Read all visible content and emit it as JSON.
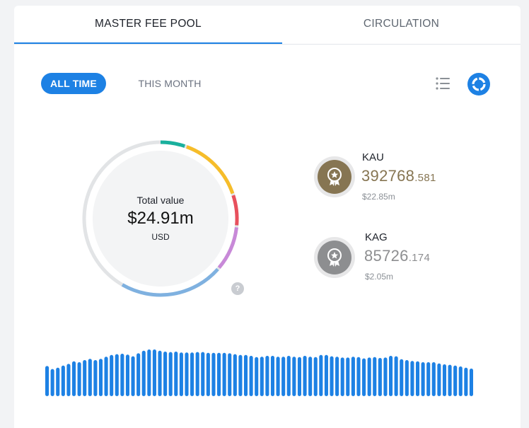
{
  "tabs": [
    {
      "label": "MASTER FEE POOL",
      "active": true
    },
    {
      "label": "CIRCULATION",
      "active": false
    }
  ],
  "filters": {
    "all_time": "ALL TIME",
    "this_month": "THIS MONTH",
    "selected": "ALL TIME"
  },
  "view_toggle": {
    "list_icon": "list-icon",
    "donut_icon": "donut-chart-icon",
    "active": "donut"
  },
  "summary": {
    "label": "Total value",
    "value": "$24.91m",
    "unit": "USD",
    "help": "?"
  },
  "coins": [
    {
      "name": "KAU",
      "amount_int": "392768",
      "amount_dec": ".581",
      "usd": "$22.85m",
      "color": "#867552",
      "icon": "gold-medal-icon"
    },
    {
      "name": "KAG",
      "amount_int": "85726",
      "amount_dec": ".174",
      "usd": "$2.05m",
      "color": "#8d8e90",
      "icon": "silver-medal-icon"
    }
  ],
  "colors": {
    "accent": "#1d81e4",
    "gold": "#867552",
    "silver": "#8d8e90",
    "ring_track": "#e2e4e6",
    "segment_teal": "#19b09d",
    "segment_yellow": "#f6bd2a",
    "segment_red": "#e8505d",
    "segment_purple": "#c889d8",
    "segment_lightblue": "#7fb1e0"
  },
  "chart_data": {
    "type": "bar",
    "bar_levels": [
      0.71,
      0.64,
      0.67,
      0.72,
      0.76,
      0.82,
      0.8,
      0.85,
      0.88,
      0.85,
      0.88,
      0.93,
      0.97,
      0.99,
      1.0,
      0.98,
      0.94,
      1.01,
      1.07,
      1.1,
      1.1,
      1.07,
      1.05,
      1.04,
      1.05,
      1.03,
      1.03,
      1.03,
      1.04,
      1.04,
      1.02,
      1.02,
      1.02,
      1.02,
      1.01,
      0.99,
      0.97,
      0.97,
      0.95,
      0.92,
      0.93,
      0.95,
      0.95,
      0.93,
      0.93,
      0.95,
      0.93,
      0.92,
      0.95,
      0.93,
      0.92,
      0.97,
      0.97,
      0.94,
      0.93,
      0.91,
      0.91,
      0.93,
      0.92,
      0.89,
      0.91,
      0.92,
      0.9,
      0.91,
      0.95,
      0.94,
      0.87,
      0.85,
      0.83,
      0.82,
      0.8,
      0.8,
      0.8,
      0.77,
      0.75,
      0.74,
      0.72,
      0.7,
      0.67,
      0.65
    ],
    "color": "#1d81e4"
  }
}
